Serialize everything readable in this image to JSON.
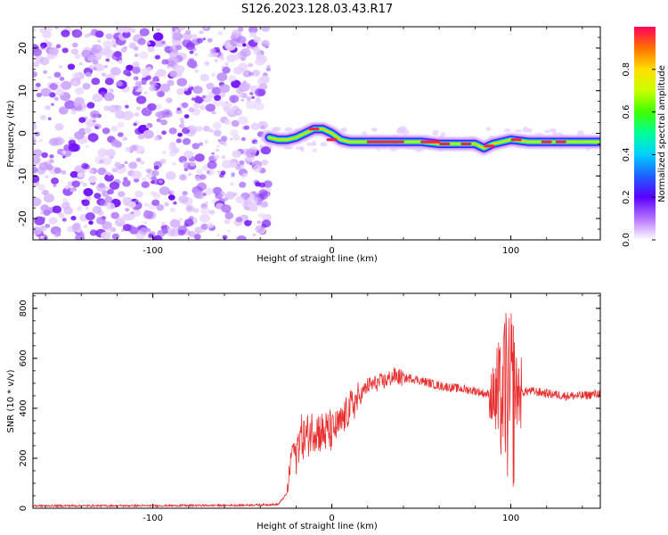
{
  "title": "S126.2023.128.03.43.R17",
  "chart_data": [
    {
      "type": "heatmap",
      "xlabel": "Height of straight line (km)",
      "ylabel": "Frequency (Hz)",
      "xlim": [
        -167,
        150
      ],
      "ylim": [
        -25,
        25
      ],
      "xticks": [
        -100,
        0,
        100
      ],
      "yticks": [
        -20,
        -10,
        0,
        10,
        20
      ],
      "noise_region_x": [
        -167,
        -35
      ],
      "signal_trace": {
        "x": [
          -35,
          -30,
          -25,
          -20,
          -15,
          -10,
          -5,
          0,
          5,
          10,
          20,
          30,
          40,
          50,
          60,
          70,
          80,
          85,
          90,
          95,
          100,
          110,
          120,
          130,
          140,
          150
        ],
        "freq_hz": [
          -1,
          -1.5,
          -1.5,
          -1,
          0,
          1,
          1,
          0,
          -1.5,
          -2,
          -2,
          -2,
          -2,
          -2,
          -2.5,
          -2.5,
          -2.5,
          -3.5,
          -2.5,
          -2,
          -1.5,
          -2,
          -2,
          -2,
          -2,
          -2
        ]
      },
      "colorbar": {
        "label": "Normalized spectral amplitude",
        "range": [
          0.0,
          1.0
        ],
        "ticks": [
          "0.0",
          "0.2",
          "0.4",
          "0.6",
          "0.8"
        ]
      }
    },
    {
      "type": "line",
      "xlabel": "Height of straight line (km)",
      "ylabel": "SNR (10 * v/v)",
      "xlim": [
        -167,
        150
      ],
      "ylim": [
        0,
        860
      ],
      "xticks": [
        -100,
        0,
        100
      ],
      "yticks": [
        0,
        200,
        400,
        600,
        800
      ],
      "color": "#e83030",
      "series": [
        {
          "x": [
            -167,
            -150,
            -100,
            -50,
            -30,
            -25,
            -22,
            -20,
            -18,
            -15,
            -10,
            -5,
            0,
            5,
            10,
            15,
            20,
            25,
            30,
            35,
            40,
            45,
            50,
            60,
            70,
            80,
            85,
            90,
            93,
            95,
            97,
            99,
            100,
            101,
            103,
            105,
            110,
            120,
            130,
            140,
            150
          ],
          "y": [
            10,
            10,
            10,
            12,
            15,
            60,
            250,
            210,
            290,
            280,
            320,
            300,
            310,
            340,
            400,
            440,
            490,
            500,
            510,
            530,
            520,
            520,
            510,
            490,
            480,
            470,
            460,
            450,
            430,
            420,
            500,
            400,
            480,
            420,
            470,
            460,
            470,
            460,
            450,
            450,
            460
          ]
        }
      ]
    }
  ]
}
